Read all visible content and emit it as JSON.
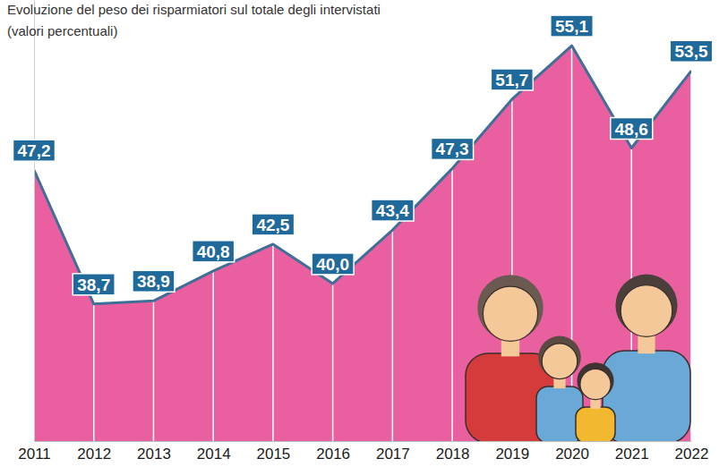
{
  "chart_data": {
    "type": "area",
    "title": "Evoluzione del peso dei risparmiatori sul totale degli intervistati",
    "subtitle": "(valori percentuali)",
    "categories": [
      "2011",
      "2012",
      "2013",
      "2014",
      "2015",
      "2016",
      "2017",
      "2018",
      "2019",
      "2020",
      "2021",
      "2022"
    ],
    "values": [
      47.2,
      38.7,
      38.9,
      40.8,
      42.5,
      40.0,
      43.4,
      47.3,
      51.7,
      55.1,
      48.6,
      53.5
    ],
    "value_labels": [
      "47,2",
      "38,7",
      "38,9",
      "40,8",
      "42,5",
      "40,0",
      "43,4",
      "47,3",
      "51,7",
      "55,1",
      "48,6",
      "53,5"
    ],
    "color": "#ea5fa0",
    "ylim": [
      30,
      58
    ],
    "data_labels": true,
    "tick_labels": "x",
    "grid": false
  }
}
